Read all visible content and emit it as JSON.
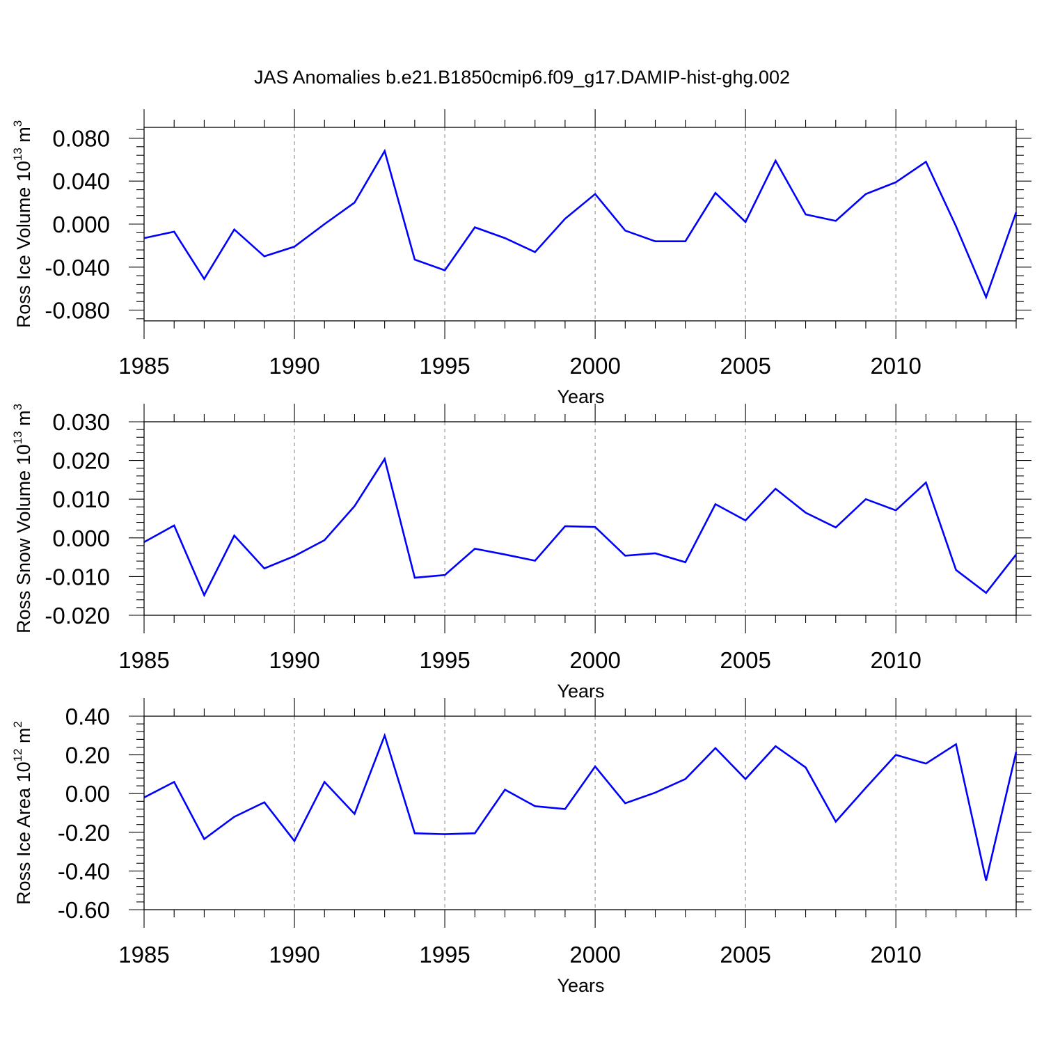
{
  "title": "JAS Anomalies b.e21.B1850cmip6.f09_g17.DAMIP-hist-ghg.002",
  "colors": {
    "line": "#0000ff",
    "axis": "#000000",
    "grid": "#999999"
  },
  "chart_data": [
    {
      "type": "line",
      "ylabel_main": "Ross Ice Volume 10",
      "ylabel_exp": "13",
      "ylabel_unit_base": " m",
      "ylabel_unit_exp": "3",
      "xlabel": "Years",
      "xlim": [
        1985,
        2014
      ],
      "ylim": [
        -0.09,
        0.09
      ],
      "x_ticks": [
        1985,
        1990,
        1995,
        2000,
        2005,
        2010
      ],
      "x_tick_labels": [
        "1985",
        "1990",
        "1995",
        "2000",
        "2005",
        "2010"
      ],
      "y_ticks": [
        -0.08,
        -0.04,
        0.0,
        0.04,
        0.08
      ],
      "y_tick_labels": [
        "-0.080",
        "-0.040",
        "0.000",
        "0.040",
        "0.080"
      ],
      "grid_x": [
        1990,
        1995,
        2000,
        2005,
        2010
      ],
      "x": [
        1985,
        1986,
        1987,
        1988,
        1989,
        1990,
        1991,
        1992,
        1993,
        1994,
        1995,
        1996,
        1997,
        1998,
        1999,
        2000,
        2001,
        2002,
        2003,
        2004,
        2005,
        2006,
        2007,
        2008,
        2009,
        2010,
        2011,
        2012,
        2013,
        2014
      ],
      "values": [
        -0.013,
        -0.007,
        -0.051,
        -0.005,
        -0.03,
        -0.021,
        0.0,
        0.02,
        0.068,
        -0.033,
        -0.043,
        -0.003,
        -0.013,
        -0.026,
        0.005,
        0.028,
        -0.006,
        -0.016,
        -0.016,
        0.029,
        0.002,
        0.059,
        0.009,
        0.003,
        0.028,
        0.039,
        0.058,
        -0.002,
        -0.068,
        0.011
      ]
    },
    {
      "type": "line",
      "ylabel_main": "Ross Snow Volume 10",
      "ylabel_exp": "13",
      "ylabel_unit_base": " m",
      "ylabel_unit_exp": "3",
      "xlabel": "Years",
      "xlim": [
        1985,
        2014
      ],
      "ylim": [
        -0.02,
        0.03
      ],
      "x_ticks": [
        1985,
        1990,
        1995,
        2000,
        2005,
        2010
      ],
      "x_tick_labels": [
        "1985",
        "1990",
        "1995",
        "2000",
        "2005",
        "2010"
      ],
      "y_ticks": [
        -0.02,
        -0.01,
        0.0,
        0.01,
        0.02,
        0.03
      ],
      "y_tick_labels": [
        "-0.020",
        "-0.010",
        "0.000",
        "0.010",
        "0.020",
        "0.030"
      ],
      "grid_x": [
        1990,
        1995,
        2000,
        2005,
        2010
      ],
      "x": [
        1985,
        1986,
        1987,
        1988,
        1989,
        1990,
        1991,
        1992,
        1993,
        1994,
        1995,
        1996,
        1997,
        1998,
        1999,
        2000,
        2001,
        2002,
        2003,
        2004,
        2005,
        2006,
        2007,
        2008,
        2009,
        2010,
        2011,
        2012,
        2013,
        2014
      ],
      "values": [
        -0.0011,
        0.0032,
        -0.0148,
        0.0006,
        -0.0079,
        -0.0047,
        -0.0006,
        0.0082,
        0.0204,
        -0.0103,
        -0.0096,
        -0.0028,
        -0.0043,
        -0.0059,
        0.003,
        0.0028,
        -0.0046,
        -0.004,
        -0.0063,
        0.0087,
        0.0045,
        0.0127,
        0.0065,
        0.0027,
        0.01,
        0.0071,
        0.0143,
        -0.0083,
        -0.0142,
        -0.0043
      ]
    },
    {
      "type": "line",
      "ylabel_main": "Ross Ice Area 10",
      "ylabel_exp": "12",
      "ylabel_unit_base": " m",
      "ylabel_unit_exp": "2",
      "xlabel": "Years",
      "xlim": [
        1985,
        2014
      ],
      "ylim": [
        -0.6,
        0.4
      ],
      "x_ticks": [
        1985,
        1990,
        1995,
        2000,
        2005,
        2010
      ],
      "x_tick_labels": [
        "1985",
        "1990",
        "1995",
        "2000",
        "2005",
        "2010"
      ],
      "y_ticks": [
        -0.6,
        -0.4,
        -0.2,
        0.0,
        0.2,
        0.4
      ],
      "y_tick_labels": [
        "-0.60",
        "-0.40",
        "-0.20",
        "0.00",
        "0.20",
        "0.40"
      ],
      "grid_x": [
        1990,
        1995,
        2000,
        2005,
        2010
      ],
      "x": [
        1985,
        1986,
        1987,
        1988,
        1989,
        1990,
        1991,
        1992,
        1993,
        1994,
        1995,
        1996,
        1997,
        1998,
        1999,
        2000,
        2001,
        2002,
        2003,
        2004,
        2005,
        2006,
        2007,
        2008,
        2009,
        2010,
        2011,
        2012,
        2013,
        2014
      ],
      "values": [
        -0.02,
        0.06,
        -0.235,
        -0.12,
        -0.045,
        -0.245,
        0.06,
        -0.105,
        0.3,
        -0.205,
        -0.21,
        -0.205,
        0.02,
        -0.065,
        -0.08,
        0.14,
        -0.05,
        0.005,
        0.075,
        0.235,
        0.075,
        0.245,
        0.135,
        -0.145,
        0.03,
        0.2,
        0.155,
        0.255,
        -0.45,
        0.215
      ]
    }
  ]
}
